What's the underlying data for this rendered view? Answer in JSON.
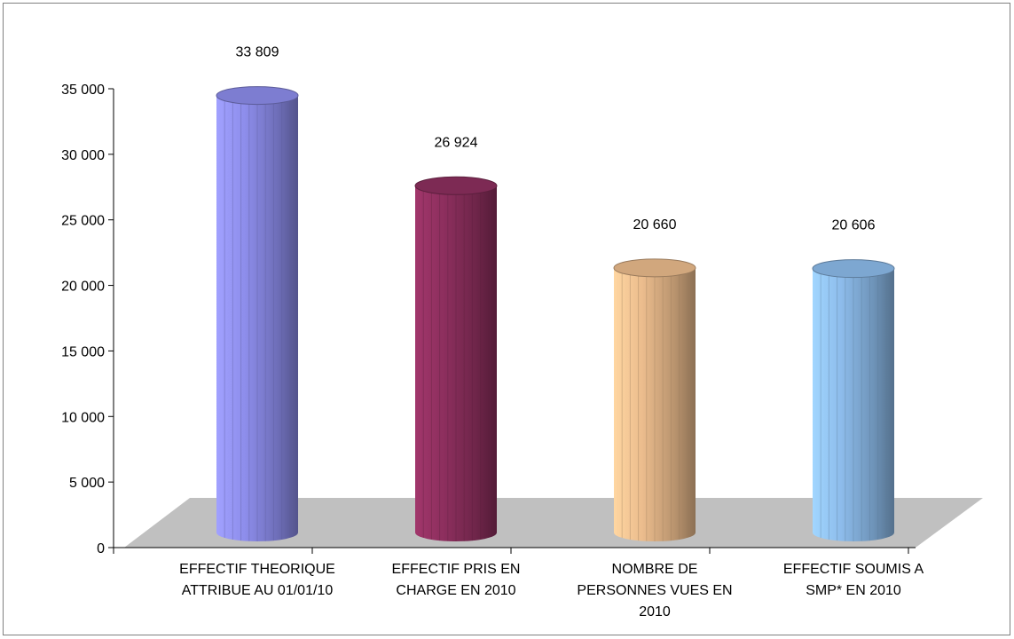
{
  "chart_data": {
    "type": "bar",
    "style": "3d-cylinder",
    "title": "",
    "xlabel": "",
    "ylabel": "",
    "ylim": [
      0,
      35000
    ],
    "yticks": [
      0,
      5000,
      10000,
      15000,
      20000,
      25000,
      30000,
      35000
    ],
    "ytick_labels": [
      "0",
      "5 000",
      "10 000",
      "15 000",
      "20 000",
      "25 000",
      "30 000",
      "35 000"
    ],
    "grid": false,
    "legend": "none",
    "categories": [
      [
        "EFFECTIF THEORIQUE",
        "ATTRIBUE AU 01/01/10"
      ],
      [
        "EFFECTIF PRIS EN",
        "CHARGE EN 2010"
      ],
      [
        "NOMBRE DE",
        "PERSONNES VUES EN",
        "2010"
      ],
      [
        "EFFECTIF SOUMIS A",
        "SMP* EN 2010"
      ]
    ],
    "values": [
      33809,
      26924,
      20660,
      20606
    ],
    "data_labels": [
      "33 809",
      "26 924",
      "20 660",
      "20 606"
    ],
    "colors": [
      "#9999ff",
      "#993366",
      "#ffcc99",
      "#99ccff"
    ],
    "floor_color": "#c0c0c0"
  }
}
